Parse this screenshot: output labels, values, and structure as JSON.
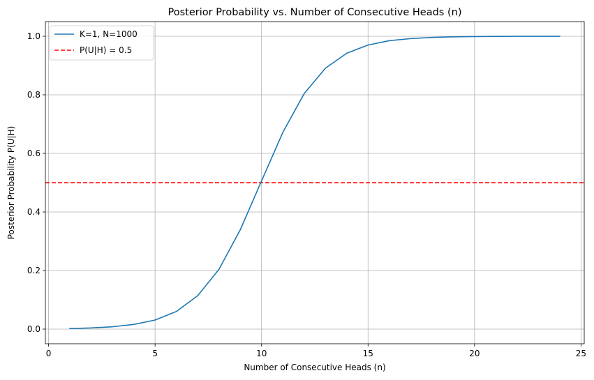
{
  "chart_data": {
    "type": "line",
    "title": "Posterior Probability vs. Number of Consecutive Heads (n)",
    "xlabel": "Number of Consecutive Heads (n)",
    "ylabel": "Posterior Probability P(U|H)",
    "xlim": [
      -0.15,
      25.15
    ],
    "ylim": [
      -0.05,
      1.05
    ],
    "xticks": [
      0,
      5,
      10,
      15,
      20,
      25
    ],
    "yticks": [
      0.0,
      0.2,
      0.4,
      0.6,
      0.8,
      1.0
    ],
    "xtick_labels": [
      "0",
      "5",
      "10",
      "15",
      "20",
      "25"
    ],
    "ytick_labels": [
      "0.0",
      "0.2",
      "0.4",
      "0.6",
      "0.8",
      "1.0"
    ],
    "grid": true,
    "legend_position": "upper-left",
    "series": [
      {
        "name": "K=1, N=1000",
        "color": "#1f77b4",
        "style": "solid",
        "x": [
          1,
          2,
          3,
          4,
          5,
          6,
          7,
          8,
          9,
          10,
          11,
          12,
          13,
          14,
          15,
          16,
          17,
          18,
          19,
          20,
          21,
          22,
          23,
          24
        ],
        "y": [
          0.002,
          0.004,
          0.008,
          0.016,
          0.031,
          0.06,
          0.114,
          0.204,
          0.339,
          0.506,
          0.672,
          0.804,
          0.891,
          0.942,
          0.97,
          0.985,
          0.992,
          0.996,
          0.998,
          0.999,
          0.9995,
          0.9998,
          0.9999,
          0.9999
        ]
      }
    ],
    "reference_lines": [
      {
        "name": "P(U|H) = 0.5",
        "orientation": "horizontal",
        "y": 0.5,
        "color": "#ff0000",
        "style": "dashed"
      }
    ]
  }
}
